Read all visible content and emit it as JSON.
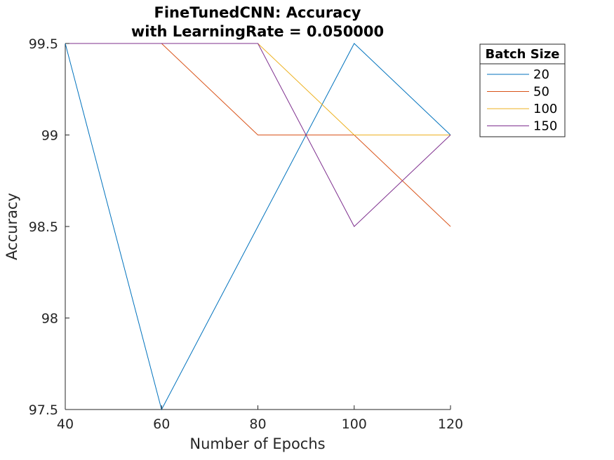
{
  "chart_data": {
    "type": "line",
    "title": [
      "FineTunedCNN: Accuracy",
      "with LearningRate = 0.050000"
    ],
    "xlabel": "Number of Epochs",
    "ylabel": "Accuracy",
    "x": [
      40,
      60,
      80,
      100,
      120
    ],
    "xlim": [
      40,
      120
    ],
    "ylim": [
      97.5,
      99.5
    ],
    "xticks": [
      "40",
      "60",
      "80",
      "100",
      "120"
    ],
    "yticks": [
      "97.5",
      "98",
      "98.5",
      "99",
      "99.5"
    ],
    "ytick_values": [
      97.5,
      98,
      98.5,
      99,
      99.5
    ],
    "grid": false,
    "legend": {
      "title": "Batch Size",
      "placement": "outside-top-right"
    },
    "series": [
      {
        "name": "20",
        "color": "#0072BD",
        "values": [
          99.5,
          97.5,
          98.5,
          99.5,
          99.0
        ]
      },
      {
        "name": "50",
        "color": "#D95319",
        "values": [
          99.5,
          99.5,
          99.0,
          99.0,
          98.5
        ]
      },
      {
        "name": "100",
        "color": "#EDB120",
        "values": [
          99.5,
          99.5,
          99.5,
          99.0,
          99.0
        ]
      },
      {
        "name": "150",
        "color": "#7E2F8E",
        "values": [
          99.5,
          99.5,
          99.5,
          98.5,
          99.0
        ]
      }
    ]
  }
}
